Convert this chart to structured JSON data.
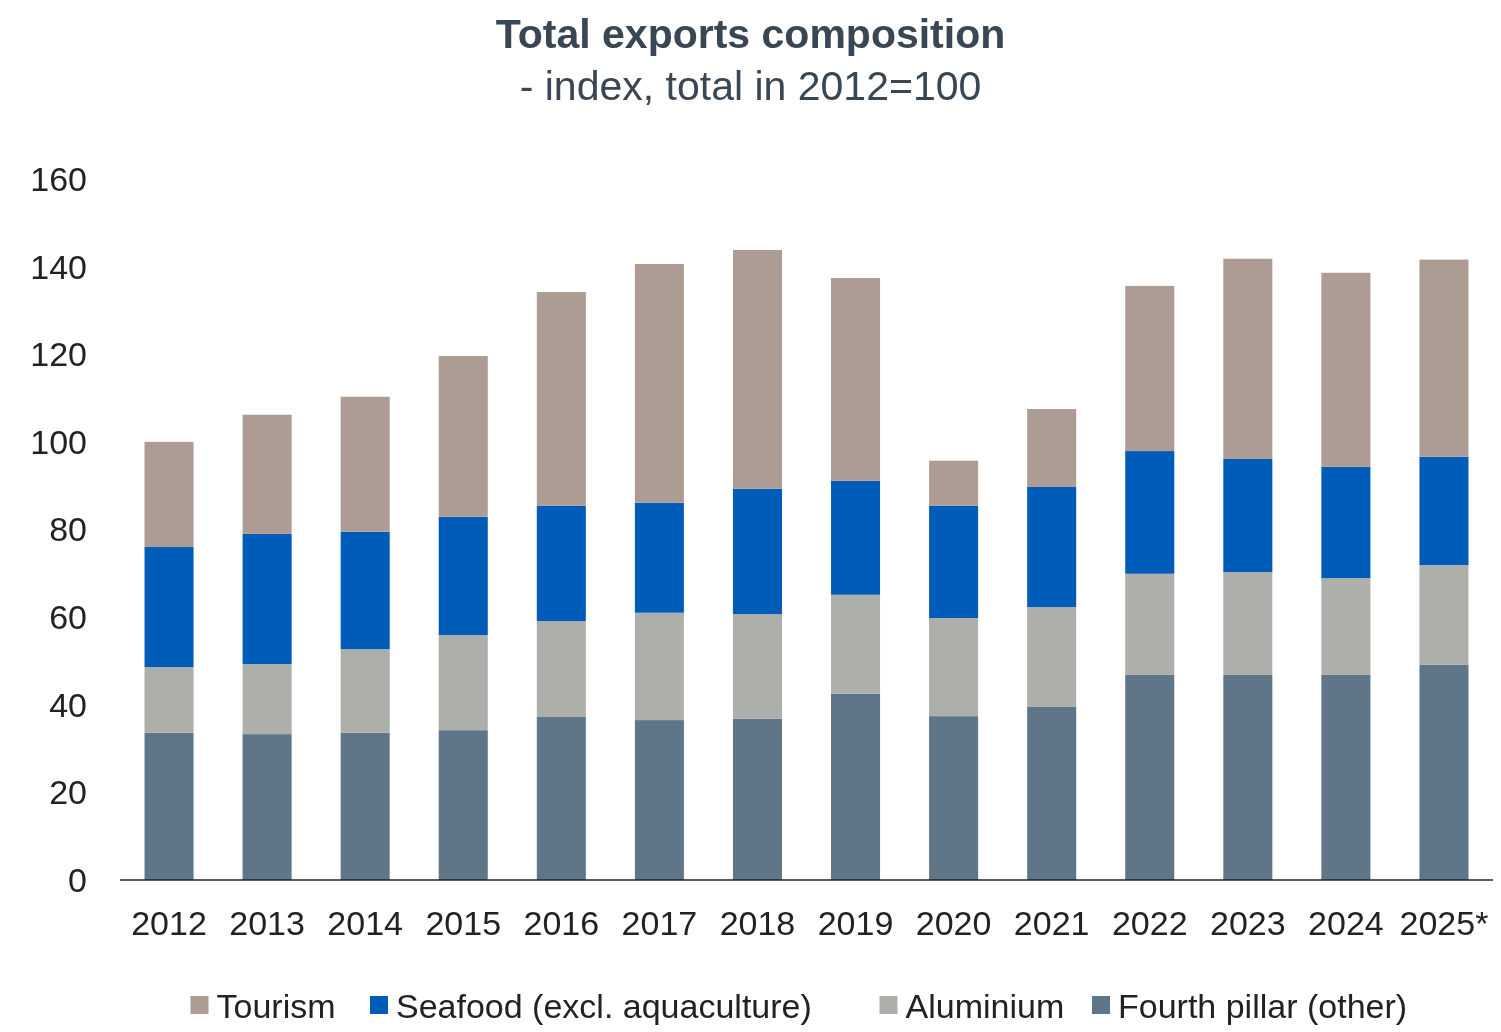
{
  "chart_data": {
    "type": "bar",
    "title": "Total exports composition",
    "subtitle": "- index, total in 2012=100",
    "categories": [
      "2012",
      "2013",
      "2014",
      "2015",
      "2016",
      "2017",
      "2018",
      "2019",
      "2020",
      "2021",
      "2022",
      "2023",
      "2024",
      "2025*"
    ],
    "stacked": true,
    "ylim": [
      0,
      160
    ],
    "yticks": [
      0,
      20,
      40,
      60,
      80,
      100,
      120,
      140,
      160
    ],
    "grid": false,
    "legend": "bottom",
    "series": [
      {
        "name": "Fourth pillar (other)",
        "color": "#5f7689",
        "values": [
          33.6,
          33.3,
          33.6,
          34.2,
          37.2,
          36.5,
          36.8,
          42.5,
          37.4,
          39.5,
          46.8,
          46.8,
          46.8,
          49.1
        ]
      },
      {
        "name": "Aluminium",
        "color": "#adafaa",
        "values": [
          15.0,
          16.0,
          19.1,
          21.7,
          21.9,
          24.5,
          23.9,
          22.6,
          22.4,
          22.8,
          23.1,
          23.5,
          22.1,
          22.8
        ]
      },
      {
        "name": "Seafood (excl. aquaculture)",
        "color": "#005cb9",
        "values": [
          27.4,
          29.7,
          26.8,
          27.0,
          26.3,
          25.1,
          28.6,
          26.0,
          25.6,
          27.4,
          28.0,
          25.8,
          25.4,
          24.7
        ]
      },
      {
        "name": "Tourism",
        "color": "#ad9c93",
        "values": [
          24.0,
          27.2,
          30.8,
          36.7,
          48.8,
          54.5,
          54.5,
          46.3,
          10.3,
          17.8,
          37.7,
          45.7,
          44.3,
          45.0
        ]
      }
    ]
  }
}
